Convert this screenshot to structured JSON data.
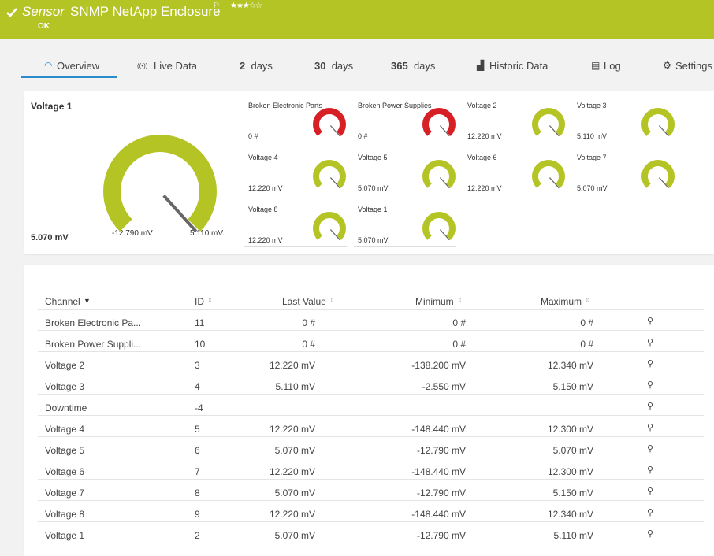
{
  "header": {
    "prefix": "Sensor",
    "title": "SNMP NetApp Enclosure",
    "status": "OK"
  },
  "tabs": [
    {
      "label": "Overview"
    },
    {
      "label": "Live Data"
    },
    {
      "number": "2",
      "label": "days"
    },
    {
      "number": "30",
      "label": "days"
    },
    {
      "number": "365",
      "label": "days"
    },
    {
      "label": "Historic Data"
    },
    {
      "label": "Log"
    },
    {
      "label": "Settings"
    }
  ],
  "main_gauge": {
    "title": "Voltage 1",
    "value": "5.070 mV",
    "min": "-12.790 mV",
    "max": "5.110 mV",
    "color": "#b4c424"
  },
  "small_gauges": [
    {
      "title": "Broken Electronic Parts",
      "value": "0 #",
      "color": "#d71f26"
    },
    {
      "title": "Broken Power Supplies",
      "value": "0 #",
      "color": "#d71f26"
    },
    {
      "title": "Voltage 2",
      "value": "12.220 mV",
      "color": "#b4c424"
    },
    {
      "title": "Voltage 3",
      "value": "5.110 mV",
      "color": "#b4c424"
    },
    {
      "title": "Voltage 4",
      "value": "12.220 mV",
      "color": "#b4c424"
    },
    {
      "title": "Voltage 5",
      "value": "5.070 mV",
      "color": "#b4c424"
    },
    {
      "title": "Voltage 6",
      "value": "12.220 mV",
      "color": "#b4c424"
    },
    {
      "title": "Voltage 7",
      "value": "5.070 mV",
      "color": "#b4c424"
    },
    {
      "title": "Voltage 8",
      "value": "12.220 mV",
      "color": "#b4c424"
    },
    {
      "title": "Voltage 1",
      "value": "5.070 mV",
      "color": "#b4c424"
    }
  ],
  "table": {
    "columns": [
      "Channel",
      "ID",
      "Last Value",
      "Minimum",
      "Maximum"
    ],
    "rows": [
      [
        "Broken Electronic Pa...",
        "11",
        "0 #",
        "0 #",
        "0 #"
      ],
      [
        "Broken Power Suppli...",
        "10",
        "0 #",
        "0 #",
        "0 #"
      ],
      [
        "Voltage 2",
        "3",
        "12.220 mV",
        "-138.200 mV",
        "12.340 mV"
      ],
      [
        "Voltage 3",
        "4",
        "5.110 mV",
        "-2.550 mV",
        "5.150 mV"
      ],
      [
        "Downtime",
        "-4",
        "",
        "",
        ""
      ],
      [
        "Voltage 4",
        "5",
        "12.220 mV",
        "-148.440 mV",
        "12.300 mV"
      ],
      [
        "Voltage 5",
        "6",
        "5.070 mV",
        "-12.790 mV",
        "5.070 mV"
      ],
      [
        "Voltage 6",
        "7",
        "12.220 mV",
        "-148.440 mV",
        "12.300 mV"
      ],
      [
        "Voltage 7",
        "8",
        "5.070 mV",
        "-12.790 mV",
        "5.150 mV"
      ],
      [
        "Voltage 8",
        "9",
        "12.220 mV",
        "-148.440 mV",
        "12.340 mV"
      ],
      [
        "Voltage 1",
        "2",
        "5.070 mV",
        "-12.790 mV",
        "5.110 mV"
      ]
    ]
  }
}
